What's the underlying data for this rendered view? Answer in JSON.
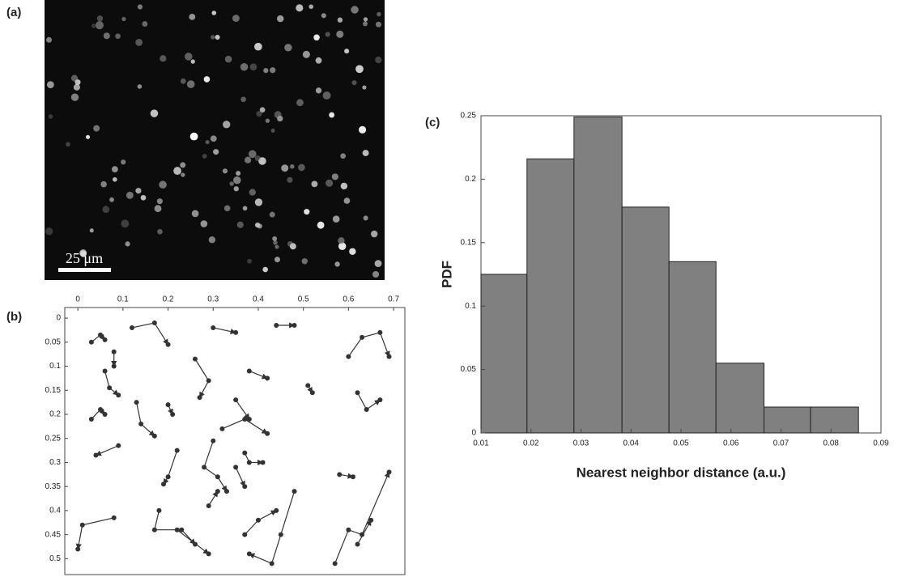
{
  "chart_data": [
    {
      "type": "image",
      "label": "(a)",
      "scale_bar": "25 μm"
    },
    {
      "type": "trajectory",
      "label": "(b)",
      "xlim": [
        -0.029,
        0.725
      ],
      "ylim": [
        -0.022,
        0.533
      ],
      "y_reversed": true,
      "xticks": [
        0,
        0.1,
        0.2,
        0.3,
        0.4,
        0.5,
        0.6,
        0.7
      ],
      "yticks": [
        0,
        0.05,
        0.1,
        0.15,
        0.2,
        0.25,
        0.3,
        0.35,
        0.4,
        0.45,
        0.5
      ],
      "color": "#333333",
      "series": [
        {
          "x": [
            0.03,
            0.05,
            0.06
          ],
          "y": [
            0.05,
            0.035,
            0.045
          ]
        },
        {
          "x": [
            0.12,
            0.17,
            0.2
          ],
          "y": [
            0.02,
            0.01,
            0.055
          ]
        },
        {
          "x": [
            0.3,
            0.35
          ],
          "y": [
            0.02,
            0.03
          ]
        },
        {
          "x": [
            0.44,
            0.48
          ],
          "y": [
            0.015,
            0.015
          ]
        },
        {
          "x": [
            0.6,
            0.63,
            0.67,
            0.69
          ],
          "y": [
            0.08,
            0.04,
            0.03,
            0.08
          ]
        },
        {
          "x": [
            0.08,
            0.08
          ],
          "y": [
            0.07,
            0.1
          ]
        },
        {
          "x": [
            0.06,
            0.07,
            0.09
          ],
          "y": [
            0.11,
            0.145,
            0.16
          ]
        },
        {
          "x": [
            0.26,
            0.29,
            0.27
          ],
          "y": [
            0.085,
            0.13,
            0.165
          ]
        },
        {
          "x": [
            0.38,
            0.42
          ],
          "y": [
            0.11,
            0.125
          ]
        },
        {
          "x": [
            0.51,
            0.52
          ],
          "y": [
            0.14,
            0.155
          ]
        },
        {
          "x": [
            0.62,
            0.64,
            0.67
          ],
          "y": [
            0.155,
            0.19,
            0.17
          ]
        },
        {
          "x": [
            0.03,
            0.05,
            0.06
          ],
          "y": [
            0.21,
            0.19,
            0.2
          ]
        },
        {
          "x": [
            0.13,
            0.14,
            0.17
          ],
          "y": [
            0.175,
            0.22,
            0.245
          ]
        },
        {
          "x": [
            0.2,
            0.21
          ],
          "y": [
            0.18,
            0.2
          ]
        },
        {
          "x": [
            0.32,
            0.37,
            0.42
          ],
          "y": [
            0.23,
            0.21,
            0.24
          ]
        },
        {
          "x": [
            0.35,
            0.38
          ],
          "y": [
            0.17,
            0.21
          ]
        },
        {
          "x": [
            0.09,
            0.04
          ],
          "y": [
            0.265,
            0.285
          ]
        },
        {
          "x": [
            0.22,
            0.2,
            0.19
          ],
          "y": [
            0.275,
            0.33,
            0.345
          ]
        },
        {
          "x": [
            0.3,
            0.28,
            0.31,
            0.33
          ],
          "y": [
            0.255,
            0.31,
            0.33,
            0.36
          ]
        },
        {
          "x": [
            0.37,
            0.38,
            0.41
          ],
          "y": [
            0.28,
            0.3,
            0.3
          ]
        },
        {
          "x": [
            0.35,
            0.37
          ],
          "y": [
            0.31,
            0.35
          ]
        },
        {
          "x": [
            0.29,
            0.31
          ],
          "y": [
            0.39,
            0.36
          ]
        },
        {
          "x": [
            0.58,
            0.61
          ],
          "y": [
            0.325,
            0.33
          ]
        },
        {
          "x": [
            0.08,
            0.01,
            0.0
          ],
          "y": [
            0.415,
            0.43,
            0.48
          ]
        },
        {
          "x": [
            0.18,
            0.17,
            0.22,
            0.29
          ],
          "y": [
            0.4,
            0.44,
            0.44,
            0.49
          ]
        },
        {
          "x": [
            0.23,
            0.26
          ],
          "y": [
            0.44,
            0.47
          ]
        },
        {
          "x": [
            0.37,
            0.4,
            0.44
          ],
          "y": [
            0.45,
            0.42,
            0.4
          ]
        },
        {
          "x": [
            0.48,
            0.45,
            0.43,
            0.38
          ],
          "y": [
            0.36,
            0.45,
            0.51,
            0.49
          ]
        },
        {
          "x": [
            0.57,
            0.6,
            0.63,
            0.69
          ],
          "y": [
            0.51,
            0.44,
            0.45,
            0.32
          ]
        },
        {
          "x": [
            0.62,
            0.65
          ],
          "y": [
            0.47,
            0.42
          ]
        }
      ]
    },
    {
      "type": "histogram",
      "label": "(c)",
      "x_label": "Nearest neighbor distance (a.u.)",
      "y_label": "PDF",
      "bins": [
        0.01,
        0.0192,
        0.0286,
        0.0382,
        0.0476,
        0.057,
        0.0666,
        0.0759,
        0.0855
      ],
      "values": [
        0.125,
        0.216,
        0.249,
        0.178,
        0.135,
        0.055,
        0.0204,
        0.0204
      ],
      "color": "#808080",
      "xlim": [
        0.01,
        0.09
      ],
      "ylim": [
        0,
        0.25
      ],
      "xticks": [
        0.01,
        0.02,
        0.03,
        0.04,
        0.05,
        0.06,
        0.07,
        0.08,
        0.09
      ],
      "yticks": [
        0,
        0.05,
        0.1,
        0.15,
        0.2,
        0.25
      ]
    }
  ]
}
